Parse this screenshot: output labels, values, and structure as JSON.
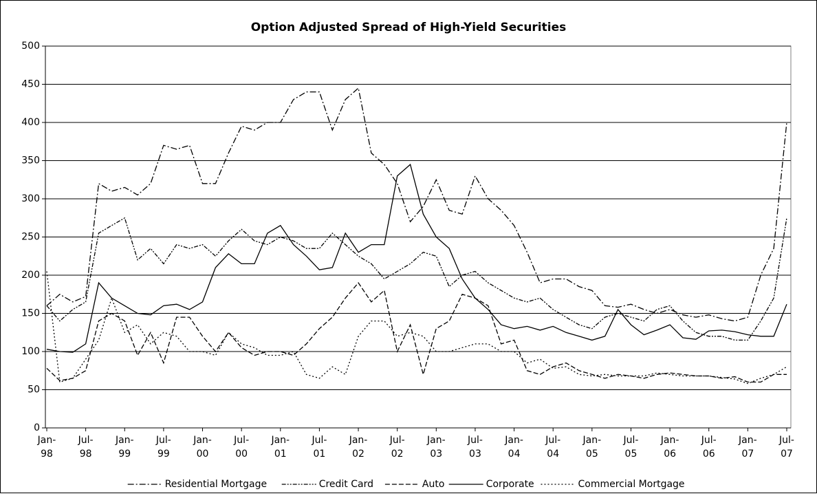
{
  "chart_data": {
    "type": "line",
    "title": "Option Adjusted Spread of High-Yield Securities",
    "categories": [
      "Jan-98",
      null,
      null,
      "Jul-98",
      null,
      null,
      "Jan-99",
      null,
      null,
      "Jul-99",
      null,
      null,
      "Jan-00",
      null,
      null,
      "Jul-00",
      null,
      null,
      "Jan-01",
      null,
      null,
      "Jul-01",
      null,
      null,
      "Jan-02",
      null,
      null,
      "Jul-02",
      null,
      null,
      "Jan-03",
      null,
      null,
      "Jul-03",
      null,
      null,
      "Jan-04",
      null,
      null,
      "Jul-04",
      null,
      null,
      "Jan-05",
      null,
      null,
      "Jul-05",
      null,
      null,
      "Jan-06",
      null,
      null,
      "Jul-06",
      null,
      null,
      "Jan-07",
      null,
      null,
      "Jul-07"
    ],
    "ylim": [
      0,
      500
    ],
    "yticks": [
      0,
      50,
      100,
      150,
      200,
      250,
      300,
      350,
      400,
      450,
      500
    ],
    "grid": true,
    "legend": "bottom",
    "series": [
      {
        "name": "Residential Mortgage",
        "color": "#000000",
        "dash": "9,3,2,3",
        "values": [
          160,
          175,
          165,
          172,
          320,
          310,
          315,
          305,
          320,
          370,
          365,
          370,
          320,
          320,
          360,
          395,
          390,
          400,
          400,
          430,
          440,
          440,
          390,
          430,
          445,
          360,
          345,
          320,
          270,
          290,
          325,
          285,
          280,
          330,
          300,
          285,
          265,
          230,
          190,
          195,
          195,
          185,
          180,
          160,
          158,
          162,
          155,
          150,
          155,
          148,
          145,
          148,
          143,
          140,
          145,
          200,
          235,
          400
        ]
      },
      {
        "name": "Credit Card",
        "color": "#000000",
        "dash": "6,2,2,2,2,2",
        "values": [
          160,
          140,
          155,
          165,
          255,
          265,
          275,
          220,
          235,
          215,
          240,
          235,
          240,
          225,
          245,
          260,
          245,
          240,
          250,
          245,
          235,
          235,
          255,
          240,
          225,
          215,
          195,
          205,
          215,
          230,
          225,
          185,
          200,
          205,
          190,
          180,
          170,
          165,
          170,
          155,
          145,
          135,
          130,
          145,
          150,
          145,
          140,
          155,
          160,
          140,
          125,
          120,
          120,
          115,
          115,
          140,
          170,
          275
        ]
      },
      {
        "name": "Auto",
        "color": "#000000",
        "dash": "7,3",
        "values": [
          78,
          62,
          65,
          75,
          140,
          150,
          140,
          95,
          125,
          85,
          145,
          145,
          120,
          100,
          125,
          105,
          95,
          100,
          100,
          95,
          110,
          130,
          145,
          170,
          190,
          165,
          180,
          100,
          135,
          70,
          130,
          140,
          175,
          170,
          160,
          110,
          115,
          75,
          70,
          80,
          85,
          75,
          70,
          65,
          70,
          68,
          65,
          70,
          72,
          70,
          68,
          68,
          65,
          67,
          60,
          60,
          70,
          70
        ]
      },
      {
        "name": "Corporate",
        "color": "#000000",
        "dash": "none",
        "values": [
          103,
          100,
          99,
          110,
          190,
          170,
          160,
          150,
          148,
          160,
          162,
          155,
          165,
          210,
          228,
          215,
          215,
          255,
          265,
          240,
          225,
          207,
          210,
          255,
          230,
          240,
          240,
          330,
          345,
          280,
          250,
          235,
          195,
          170,
          155,
          135,
          130,
          133,
          128,
          133,
          125,
          120,
          115,
          120,
          155,
          135,
          122,
          128,
          135,
          118,
          116,
          127,
          128,
          126,
          122,
          120,
          120,
          162
        ]
      },
      {
        "name": "Commercial Mortgage",
        "color": "#000000",
        "dash": "2,3",
        "values": [
          205,
          60,
          65,
          90,
          115,
          170,
          125,
          135,
          110,
          125,
          120,
          100,
          100,
          95,
          125,
          110,
          105,
          95,
          95,
          100,
          70,
          65,
          80,
          70,
          120,
          140,
          140,
          120,
          125,
          120,
          100,
          100,
          105,
          110,
          110,
          100,
          100,
          85,
          90,
          78,
          80,
          70,
          68,
          70,
          68,
          68,
          68,
          72,
          70,
          68,
          68,
          68,
          66,
          64,
          58,
          65,
          70,
          80
        ]
      }
    ]
  }
}
